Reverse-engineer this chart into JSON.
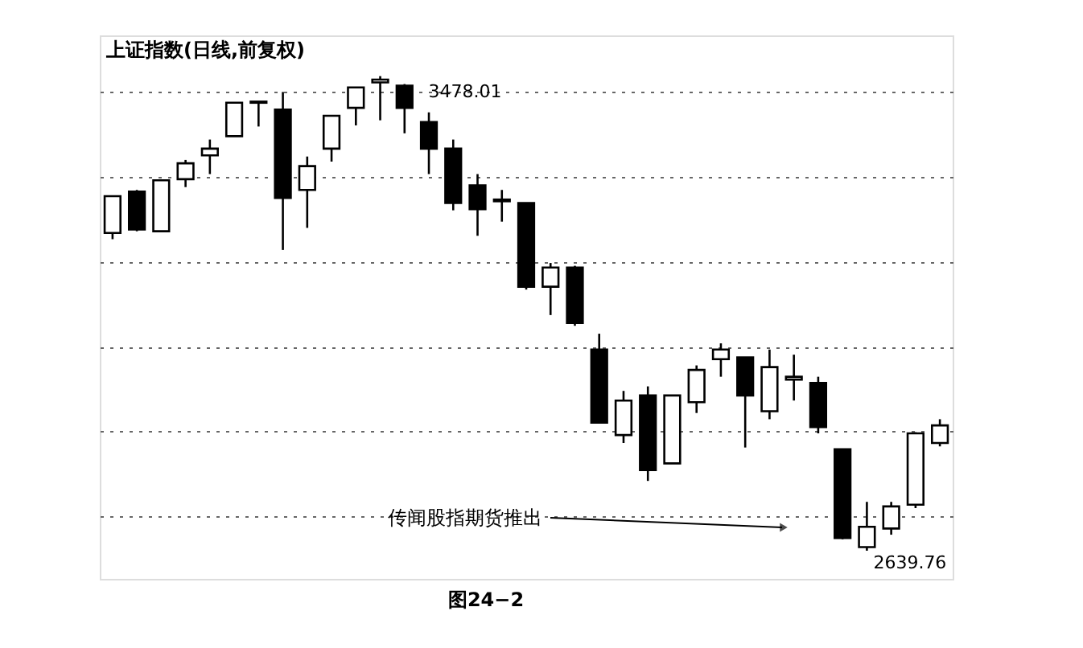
{
  "chart_data": {
    "type": "candlestick",
    "title": "上证指数(日线,前复权)",
    "categories": [
      null,
      null,
      null,
      null,
      null,
      null,
      null,
      null,
      null,
      null,
      null,
      null,
      null,
      null,
      null,
      null,
      null,
      null,
      null,
      null,
      null,
      null,
      null,
      null,
      null,
      null,
      null,
      null,
      null,
      null,
      null,
      null,
      null,
      null,
      null
    ],
    "series": [
      {
        "color": "#000000",
        "ohlc": [
          [
            3201,
            3266,
            3190,
            3266
          ],
          [
            3274,
            3277,
            3204,
            3207
          ],
          [
            3204,
            3294,
            3204,
            3294
          ],
          [
            3296,
            3330,
            3282,
            3324
          ],
          [
            3338,
            3366,
            3305,
            3350
          ],
          [
            3372,
            3431,
            3372,
            3431
          ],
          [
            3431,
            3433,
            3389,
            3433
          ],
          [
            3419,
            3450,
            3171,
            3263
          ],
          [
            3277,
            3336,
            3210,
            3319
          ],
          [
            3350,
            3408,
            3327,
            3408
          ],
          [
            3422,
            3458,
            3391,
            3458
          ],
          [
            3467,
            3478.01,
            3400,
            3472
          ],
          [
            3461,
            3464,
            3377,
            3422
          ],
          [
            3397,
            3414,
            3305,
            3350
          ],
          [
            3350,
            3366,
            3241,
            3254
          ],
          [
            3285,
            3305,
            3196,
            3243
          ],
          [
            3257,
            3277,
            3221,
            3260
          ],
          [
            3254,
            3254,
            3101,
            3106
          ],
          [
            3106,
            3148,
            3056,
            3140
          ],
          [
            3140,
            3143,
            3037,
            3042
          ],
          [
            2995,
            3023,
            2866,
            2866
          ],
          [
            2844,
            2922,
            2830,
            2905
          ],
          [
            2914,
            2930,
            2763,
            2782
          ],
          [
            2794,
            2914,
            2794,
            2914
          ],
          [
            2902,
            2967,
            2883,
            2959
          ],
          [
            2978,
            3006,
            2947,
            2995
          ],
          [
            2981,
            2981,
            2822,
            2914
          ],
          [
            2886,
            2995,
            2872,
            2964
          ],
          [
            2942,
            2986,
            2905,
            2947
          ],
          [
            2936,
            2947,
            2847,
            2858
          ],
          [
            2819,
            2819,
            2660,
            2662
          ],
          [
            2646,
            2726,
            2639.76,
            2682
          ],
          [
            2679,
            2726,
            2668,
            2718
          ],
          [
            2721,
            2849,
            2715,
            2847
          ],
          [
            2830,
            2872,
            2824,
            2861
          ]
        ]
      }
    ],
    "ylim": [
      2590,
      3550
    ],
    "yticks": [
      {
        "value": 2700,
        "label": null
      },
      {
        "value": 2850,
        "label": null
      },
      {
        "value": 3000,
        "label": null
      },
      {
        "value": 3150,
        "label": null
      },
      {
        "value": 3300,
        "label": null
      },
      {
        "value": 3450,
        "label": null
      }
    ],
    "grid": "y",
    "tick_labels": false,
    "annotations": [
      "3478.01",
      "2639.76",
      "传闻股指期货推出",
      "图24−2"
    ]
  }
}
